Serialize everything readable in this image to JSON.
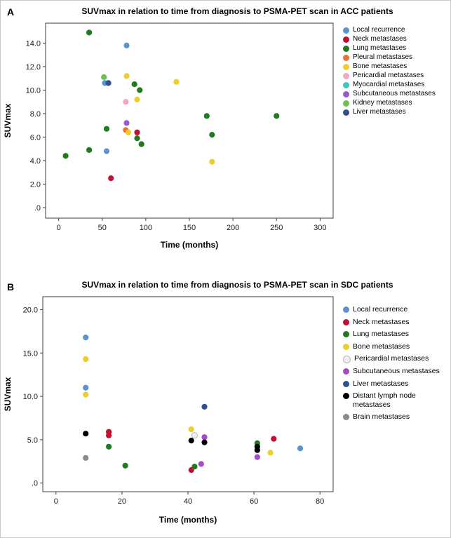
{
  "panels": [
    {
      "label": "A"
    },
    {
      "label": "B"
    }
  ],
  "chart_data": [
    {
      "type": "scatter",
      "title": "SUVmax in relation to time from diagnosis to PSMA-PET scan in ACC patients",
      "xlabel": "Time (months)",
      "ylabel": "SUVmax",
      "xlim": [
        -15,
        315
      ],
      "ylim": [
        -0.9,
        15.7
      ],
      "xticks": [
        0,
        50,
        100,
        150,
        200,
        250,
        300
      ],
      "xtick_labels": [
        "0",
        "50",
        "100",
        "150",
        "200",
        "250",
        "300"
      ],
      "yticks": [
        14,
        12,
        10,
        8,
        6,
        4,
        2,
        0
      ],
      "ytick_labels": [
        "14.0",
        "12.0",
        "10.0",
        "8.0",
        "6.0",
        "4.0",
        "2.0",
        ".0"
      ],
      "grid": false,
      "legend_position": "right",
      "series": [
        {
          "name": "Local recurrence",
          "color": "#5B93D1",
          "points": [
            [
              53,
              10.6
            ],
            [
              78,
              13.8
            ],
            [
              55,
              4.8
            ]
          ]
        },
        {
          "name": "Neck metastases",
          "color": "#C0102E",
          "points": [
            [
              60,
              2.5
            ],
            [
              90,
              6.4
            ]
          ]
        },
        {
          "name": "Lung metastases",
          "color": "#217A21",
          "points": [
            [
              8,
              4.4
            ],
            [
              35,
              14.9
            ],
            [
              35,
              4.9
            ],
            [
              55,
              6.7
            ],
            [
              87,
              10.5
            ],
            [
              93,
              10.0
            ],
            [
              90,
              5.9
            ],
            [
              95,
              5.4
            ],
            [
              170,
              7.8
            ],
            [
              176,
              6.2
            ],
            [
              250,
              7.8
            ]
          ]
        },
        {
          "name": "Pleural metastases",
          "color": "#E9732E",
          "points": [
            [
              77,
              6.6
            ]
          ]
        },
        {
          "name": "Bone metastases",
          "color": "#EDCE2B",
          "points": [
            [
              78,
              11.2
            ],
            [
              90,
              9.2
            ],
            [
              80,
              6.4
            ],
            [
              135,
              10.7
            ],
            [
              176,
              3.9
            ]
          ]
        },
        {
          "name": "Pericardial metastases",
          "color": "#F4A6C6",
          "points": [
            [
              77,
              9.0
            ]
          ]
        },
        {
          "name": "Myocardial metastases",
          "color": "#3EC6C6",
          "points": [
            [
              57,
              10.6
            ]
          ]
        },
        {
          "name": "Subcutaneous metastases",
          "color": "#9B59D0",
          "points": [
            [
              78,
              7.2
            ]
          ]
        },
        {
          "name": "Kidney metastases",
          "color": "#6FC04C",
          "points": [
            [
              52,
              11.1
            ]
          ]
        },
        {
          "name": "Liver metastases",
          "color": "#31508F",
          "points": [
            [
              57,
              10.6
            ]
          ]
        }
      ]
    },
    {
      "type": "scatter",
      "title": "SUVmax in relation to time from diagnosis to PSMA-PET scan in SDC patients",
      "xlabel": "Time (months)",
      "ylabel": "SUVmax",
      "xlim": [
        -4,
        84
      ],
      "ylim": [
        -1,
        21.5
      ],
      "xticks": [
        0,
        20,
        40,
        60,
        80
      ],
      "xtick_labels": [
        "0",
        "20",
        "40",
        "60",
        "80"
      ],
      "yticks": [
        20,
        15,
        10,
        5,
        0
      ],
      "ytick_labels": [
        "20.0",
        "15.0",
        "10.0",
        "5.0",
        ".0"
      ],
      "grid": false,
      "legend_position": "right",
      "series": [
        {
          "name": "Local recurrence",
          "color": "#5B93D1",
          "points": [
            [
              9,
              16.8
            ],
            [
              9,
              11.0
            ],
            [
              74,
              4.0
            ]
          ]
        },
        {
          "name": "Neck metastases",
          "color": "#C0102E",
          "points": [
            [
              16,
              5.9
            ],
            [
              16,
              5.5
            ],
            [
              41,
              1.5
            ],
            [
              66,
              5.1
            ]
          ]
        },
        {
          "name": "Lung metastases",
          "color": "#217A21",
          "points": [
            [
              16,
              4.2
            ],
            [
              21,
              2.0
            ],
            [
              42,
              1.9
            ],
            [
              61,
              4.6
            ]
          ]
        },
        {
          "name": "Bone metastases",
          "color": "#EDCE2B",
          "points": [
            [
              9,
              14.3
            ],
            [
              9,
              10.2
            ],
            [
              41,
              6.2
            ],
            [
              65,
              3.5
            ]
          ]
        },
        {
          "name": "Pericardial metastases",
          "color": "#EFEFEF",
          "stroke": "#B9B9B9",
          "points": [
            [
              42,
              5.5
            ]
          ]
        },
        {
          "name": "Subcutaneous metastases",
          "color": "#A649CB",
          "points": [
            [
              45,
              5.3
            ],
            [
              44,
              2.2
            ],
            [
              61,
              3.0
            ]
          ]
        },
        {
          "name": "Liver metastases",
          "color": "#31508F",
          "points": [
            [
              45,
              8.8
            ]
          ]
        },
        {
          "name": "Distant lymph node metastases",
          "color": "#000000",
          "points": [
            [
              9,
              5.7
            ],
            [
              41,
              4.9
            ],
            [
              45,
              4.7
            ],
            [
              61,
              4.2
            ],
            [
              61,
              3.8
            ]
          ]
        },
        {
          "name": "Brain metastases",
          "color": "#8A8A8A",
          "points": [
            [
              9,
              2.9
            ]
          ]
        }
      ]
    }
  ]
}
